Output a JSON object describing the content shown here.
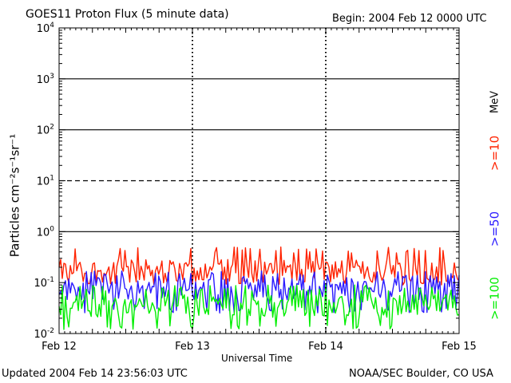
{
  "header": {
    "title": "GOES11 Proton Flux (5 minute data)",
    "begin": "Begin: 2004 Feb 12 0000 UTC"
  },
  "footer": {
    "updated": "Updated 2004 Feb 14 23:56:03 UTC",
    "source": "NOAA/SEC Boulder, CO USA"
  },
  "chart_data": {
    "type": "line",
    "title": "GOES11 Proton Flux (5 minute data)",
    "xlabel": "Universal Time",
    "ylabel": "Particles cm⁻²s⁻¹sr⁻¹",
    "y_scale": "log",
    "ylim": [
      0.01,
      10000
    ],
    "y_ticks": [
      0.01,
      0.1,
      1,
      10,
      100,
      1000,
      10000
    ],
    "y_tick_labels": [
      {
        "base": "10",
        "exp": "-2"
      },
      {
        "base": "10",
        "exp": "-1"
      },
      {
        "base": "10",
        "exp": "0"
      },
      {
        "base": "10",
        "exp": "1"
      },
      {
        "base": "10",
        "exp": "2"
      },
      {
        "base": "10",
        "exp": "3"
      },
      {
        "base": "10",
        "exp": "4"
      }
    ],
    "x_range": [
      "2004-02-12 00:00",
      "2004-02-15 00:00"
    ],
    "x_tick_labels": [
      "Feb 12",
      "Feb 13",
      "Feb 14",
      "Feb 15"
    ],
    "threshold_lines": [
      {
        "value": 1,
        "style": "solid"
      },
      {
        "value": 10,
        "style": "dashed"
      },
      {
        "value": 100,
        "style": "solid"
      },
      {
        "value": 1000,
        "style": "solid"
      }
    ],
    "legend_unit": "MeV",
    "series": [
      {
        "name": ">=10",
        "color": "#ff2200",
        "typical": 0.17,
        "min": 0.09,
        "max": 0.5
      },
      {
        "name": ">=50",
        "color": "#2a1aff",
        "typical": 0.075,
        "min": 0.025,
        "max": 0.17
      },
      {
        "name": ">=100",
        "color": "#00ee00",
        "typical": 0.035,
        "min": 0.012,
        "max": 0.09
      }
    ]
  }
}
